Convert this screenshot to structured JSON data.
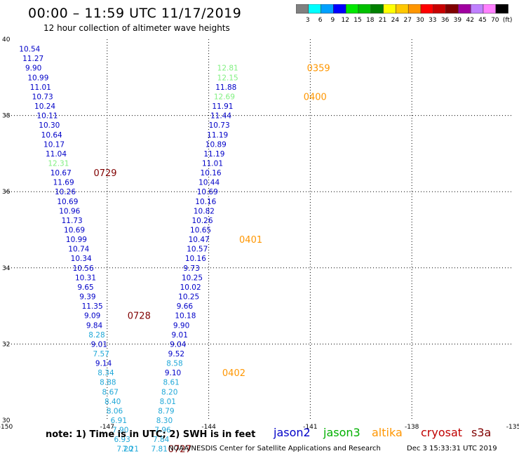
{
  "header": {
    "title": "00:00 – 11:59 UTC 11/17/2019",
    "subtitle": "12 hour collection of altimeter wave heights"
  },
  "color_scale": {
    "colors": [
      "#808080",
      "#00ffff",
      "#00a0ff",
      "#0000ff",
      "#00e800",
      "#00c000",
      "#008000",
      "#ffff00",
      "#ffc800",
      "#ff9600",
      "#ff0000",
      "#c80000",
      "#800000",
      "#a000a0",
      "#c080ff",
      "#ff80ff",
      "#000000"
    ],
    "labels": [
      "3",
      "6",
      "9",
      "12",
      "15",
      "18",
      "21",
      "24",
      "27",
      "30",
      "33",
      "36",
      "39",
      "42",
      "45",
      "70",
      "(ft)"
    ]
  },
  "map": {
    "x_ticks": [
      "-150",
      "-147",
      "-144",
      "-141",
      "-138",
      "-135"
    ],
    "y_ticks": [
      "30",
      "32",
      "34",
      "36",
      "38",
      "40"
    ]
  },
  "track_colors": {
    "jason2": "#0000c8",
    "jason3": "#00b000",
    "altika": "#ff9600",
    "cryosat": "#800000",
    "light": "#80f080",
    "sky": "#20a8d8"
  },
  "chart_data": {
    "type": "scatter",
    "xlabel": "",
    "ylabel": "",
    "xlim": [
      -150,
      -135
    ],
    "ylim": [
      30,
      40
    ],
    "points": [
      {
        "lon": -149.6,
        "lat": 39.75,
        "v": "10.54",
        "c": "jason2"
      },
      {
        "lon": -149.5,
        "lat": 39.5,
        "v": "11.27",
        "c": "jason2"
      },
      {
        "lon": -149.42,
        "lat": 39.25,
        "v": "9.90",
        "c": "jason2"
      },
      {
        "lon": -149.35,
        "lat": 39.0,
        "v": "10.99",
        "c": "jason2"
      },
      {
        "lon": -149.28,
        "lat": 38.75,
        "v": "11.01",
        "c": "jason2"
      },
      {
        "lon": -149.22,
        "lat": 38.5,
        "v": "10.73",
        "c": "jason2"
      },
      {
        "lon": -149.15,
        "lat": 38.25,
        "v": "10.24",
        "c": "jason2"
      },
      {
        "lon": -149.08,
        "lat": 38.0,
        "v": "10.11",
        "c": "jason2"
      },
      {
        "lon": -149.02,
        "lat": 37.75,
        "v": "10.30",
        "c": "jason2"
      },
      {
        "lon": -148.95,
        "lat": 37.5,
        "v": "10.64",
        "c": "jason2"
      },
      {
        "lon": -148.88,
        "lat": 37.25,
        "v": "10.17",
        "c": "jason2"
      },
      {
        "lon": -148.82,
        "lat": 37.0,
        "v": "11.04",
        "c": "jason2"
      },
      {
        "lon": -148.75,
        "lat": 36.75,
        "v": "12.31",
        "c": "light"
      },
      {
        "lon": -148.68,
        "lat": 36.5,
        "v": "10.67",
        "c": "jason2"
      },
      {
        "lon": -148.6,
        "lat": 36.25,
        "v": "11.69",
        "c": "jason2"
      },
      {
        "lon": -148.55,
        "lat": 36.0,
        "v": "10.26",
        "c": "jason2"
      },
      {
        "lon": -148.48,
        "lat": 35.75,
        "v": "10.69",
        "c": "jason2"
      },
      {
        "lon": -148.42,
        "lat": 35.5,
        "v": "10.96",
        "c": "jason2"
      },
      {
        "lon": -148.35,
        "lat": 35.25,
        "v": "11.73",
        "c": "jason2"
      },
      {
        "lon": -148.28,
        "lat": 35.0,
        "v": "10.69",
        "c": "jason2"
      },
      {
        "lon": -148.22,
        "lat": 34.75,
        "v": "10.99",
        "c": "jason2"
      },
      {
        "lon": -148.15,
        "lat": 34.5,
        "v": "10.74",
        "c": "jason2"
      },
      {
        "lon": -148.08,
        "lat": 34.25,
        "v": "10.34",
        "c": "jason2"
      },
      {
        "lon": -148.02,
        "lat": 34.0,
        "v": "10.56",
        "c": "jason2"
      },
      {
        "lon": -147.95,
        "lat": 33.75,
        "v": "10.31",
        "c": "jason2"
      },
      {
        "lon": -147.88,
        "lat": 33.5,
        "v": "9.65",
        "c": "jason2"
      },
      {
        "lon": -147.82,
        "lat": 33.25,
        "v": "9.39",
        "c": "jason2"
      },
      {
        "lon": -147.75,
        "lat": 33.0,
        "v": "11.35",
        "c": "jason2"
      },
      {
        "lon": -147.68,
        "lat": 32.75,
        "v": "9.09",
        "c": "jason2"
      },
      {
        "lon": -147.62,
        "lat": 32.5,
        "v": "9.84",
        "c": "jason2"
      },
      {
        "lon": -147.55,
        "lat": 32.25,
        "v": "8.28",
        "c": "sky"
      },
      {
        "lon": -147.48,
        "lat": 32.0,
        "v": "9.01",
        "c": "jason2"
      },
      {
        "lon": -147.42,
        "lat": 31.75,
        "v": "7.57",
        "c": "sky"
      },
      {
        "lon": -147.35,
        "lat": 31.5,
        "v": "9.14",
        "c": "jason2"
      },
      {
        "lon": -147.28,
        "lat": 31.25,
        "v": "8.34",
        "c": "sky"
      },
      {
        "lon": -147.22,
        "lat": 31.0,
        "v": "8.88",
        "c": "sky"
      },
      {
        "lon": -147.15,
        "lat": 30.75,
        "v": "8.67",
        "c": "sky"
      },
      {
        "lon": -147.08,
        "lat": 30.5,
        "v": "8.40",
        "c": "sky"
      },
      {
        "lon": -147.02,
        "lat": 30.25,
        "v": "8.06",
        "c": "sky"
      },
      {
        "lon": -146.9,
        "lat": 30.0,
        "v": "6.91",
        "c": "sky"
      },
      {
        "lon": -146.85,
        "lat": 29.75,
        "v": "7.90",
        "c": "sky"
      },
      {
        "lon": -146.8,
        "lat": 29.5,
        "v": "6.93",
        "c": "sky"
      },
      {
        "lon": -146.72,
        "lat": 29.25,
        "v": "7.20",
        "c": "sky"
      },
      {
        "lon": -146.55,
        "lat": 29.25,
        "v": "7.21",
        "c": "sky"
      },
      {
        "lon": -143.75,
        "lat": 39.25,
        "v": "12.81",
        "c": "light"
      },
      {
        "lon": -143.75,
        "lat": 39.0,
        "v": "12.15",
        "c": "light"
      },
      {
        "lon": -143.8,
        "lat": 38.75,
        "v": "11.88",
        "c": "jason2"
      },
      {
        "lon": -143.85,
        "lat": 38.5,
        "v": "12.69",
        "c": "light"
      },
      {
        "lon": -143.9,
        "lat": 38.25,
        "v": "11.91",
        "c": "jason2"
      },
      {
        "lon": -143.95,
        "lat": 38.0,
        "v": "11.44",
        "c": "jason2"
      },
      {
        "lon": -144.0,
        "lat": 37.75,
        "v": "10.73",
        "c": "jason2"
      },
      {
        "lon": -144.05,
        "lat": 37.5,
        "v": "11.19",
        "c": "jason2"
      },
      {
        "lon": -144.1,
        "lat": 37.25,
        "v": "10.89",
        "c": "jason2"
      },
      {
        "lon": -144.15,
        "lat": 37.0,
        "v": "11.19",
        "c": "jason2"
      },
      {
        "lon": -144.2,
        "lat": 36.75,
        "v": "11.01",
        "c": "jason2"
      },
      {
        "lon": -144.25,
        "lat": 36.5,
        "v": "10.16",
        "c": "jason2"
      },
      {
        "lon": -144.3,
        "lat": 36.25,
        "v": "10.44",
        "c": "jason2"
      },
      {
        "lon": -144.35,
        "lat": 36.0,
        "v": "10.69",
        "c": "jason2"
      },
      {
        "lon": -144.4,
        "lat": 35.75,
        "v": "10.16",
        "c": "jason2"
      },
      {
        "lon": -144.45,
        "lat": 35.5,
        "v": "10.82",
        "c": "jason2"
      },
      {
        "lon": -144.5,
        "lat": 35.25,
        "v": "10.26",
        "c": "jason2"
      },
      {
        "lon": -144.55,
        "lat": 35.0,
        "v": "10.65",
        "c": "jason2"
      },
      {
        "lon": -144.6,
        "lat": 34.75,
        "v": "10.47",
        "c": "jason2"
      },
      {
        "lon": -144.65,
        "lat": 34.5,
        "v": "10.57",
        "c": "jason2"
      },
      {
        "lon": -144.7,
        "lat": 34.25,
        "v": "10.16",
        "c": "jason2"
      },
      {
        "lon": -144.75,
        "lat": 34.0,
        "v": "9.73",
        "c": "jason2"
      },
      {
        "lon": -144.8,
        "lat": 33.75,
        "v": "10.25",
        "c": "jason2"
      },
      {
        "lon": -144.85,
        "lat": 33.5,
        "v": "10.02",
        "c": "jason2"
      },
      {
        "lon": -144.9,
        "lat": 33.25,
        "v": "10.25",
        "c": "jason2"
      },
      {
        "lon": -144.95,
        "lat": 33.0,
        "v": "9.66",
        "c": "jason2"
      },
      {
        "lon": -145.0,
        "lat": 32.75,
        "v": "10.18",
        "c": "jason2"
      },
      {
        "lon": -145.05,
        "lat": 32.5,
        "v": "9.90",
        "c": "jason2"
      },
      {
        "lon": -145.1,
        "lat": 32.25,
        "v": "9.01",
        "c": "jason2"
      },
      {
        "lon": -145.15,
        "lat": 32.0,
        "v": "9.04",
        "c": "jason2"
      },
      {
        "lon": -145.2,
        "lat": 31.75,
        "v": "9.52",
        "c": "jason2"
      },
      {
        "lon": -145.25,
        "lat": 31.5,
        "v": "8.58",
        "c": "sky"
      },
      {
        "lon": -145.3,
        "lat": 31.25,
        "v": "9.10",
        "c": "jason2"
      },
      {
        "lon": -145.35,
        "lat": 31.0,
        "v": "8.61",
        "c": "sky"
      },
      {
        "lon": -145.4,
        "lat": 30.75,
        "v": "8.20",
        "c": "sky"
      },
      {
        "lon": -145.45,
        "lat": 30.5,
        "v": "8.01",
        "c": "sky"
      },
      {
        "lon": -145.5,
        "lat": 30.25,
        "v": "8.79",
        "c": "sky"
      },
      {
        "lon": -145.55,
        "lat": 30.0,
        "v": "8.30",
        "c": "sky"
      },
      {
        "lon": -145.6,
        "lat": 29.75,
        "v": "7.96",
        "c": "sky"
      },
      {
        "lon": -145.65,
        "lat": 29.5,
        "v": "7.84",
        "c": "sky"
      },
      {
        "lon": -145.7,
        "lat": 29.25,
        "v": "7.81",
        "c": "sky"
      }
    ],
    "time_labels": [
      {
        "lon": -141.1,
        "lat": 39.25,
        "text": "0359",
        "c": "altika"
      },
      {
        "lon": -141.2,
        "lat": 38.5,
        "text": "0400",
        "c": "altika"
      },
      {
        "lon": -143.1,
        "lat": 34.75,
        "text": "0401",
        "c": "altika"
      },
      {
        "lon": -143.6,
        "lat": 31.25,
        "text": "0402",
        "c": "altika"
      },
      {
        "lon": -147.4,
        "lat": 36.5,
        "text": "0729",
        "c": "cryosat"
      },
      {
        "lon": -146.4,
        "lat": 32.75,
        "text": "0728",
        "c": "cryosat"
      },
      {
        "lon": -145.2,
        "lat": 29.25,
        "text": "0727",
        "c": "cryosat"
      }
    ]
  },
  "footer": {
    "note": "note:  1) Time is in UTC;  2) SWH is in feet",
    "satellites": [
      {
        "name": "jason2",
        "color": "#0000c8"
      },
      {
        "name": "jason3",
        "color": "#00b000"
      },
      {
        "name": "altika",
        "color": "#ff9600"
      },
      {
        "name": "cryosat",
        "color": "#c00000"
      },
      {
        "name": "s3a",
        "color": "#800000"
      }
    ],
    "credit": "NOAA/NESDIS Center for Satellite Applications and Research",
    "timestamp": "Dec  3 15:33:31 UTC 2019"
  }
}
